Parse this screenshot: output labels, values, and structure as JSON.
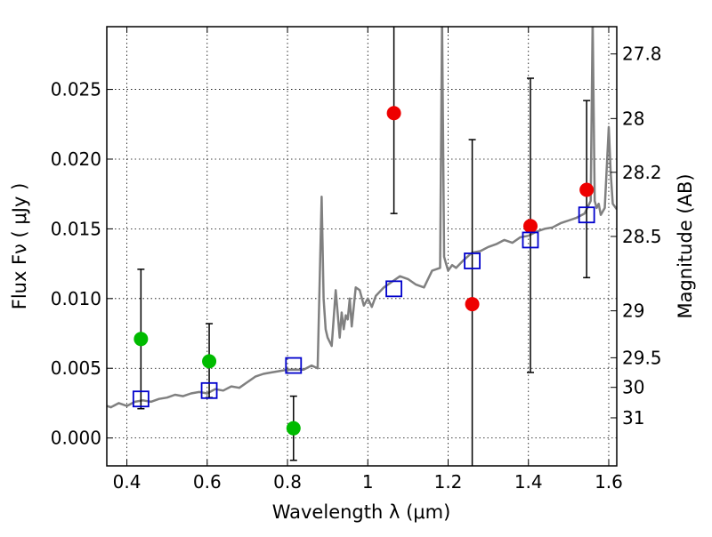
{
  "chart_data": {
    "type": "scatter",
    "title": "",
    "xlabel": "Wavelength  λ (μm)",
    "ylabel": "Flux  Fν  ( μJy )",
    "y2label": "Magnitude (AB)",
    "xlim": [
      0.35,
      1.62
    ],
    "ylim": [
      -0.002,
      0.0295
    ],
    "grid": true,
    "legend": "none",
    "x_ticks": [
      {
        "value": 0.4,
        "label": "0.4"
      },
      {
        "value": 0.6,
        "label": "0.6"
      },
      {
        "value": 0.8,
        "label": "0.8"
      },
      {
        "value": 1.0,
        "label": "1"
      },
      {
        "value": 1.2,
        "label": "1.2"
      },
      {
        "value": 1.4,
        "label": "1.4"
      },
      {
        "value": 1.6,
        "label": "1.6"
      }
    ],
    "y_ticks": [
      {
        "value": 0.0,
        "label": "0.000"
      },
      {
        "value": 0.005,
        "label": "0.005"
      },
      {
        "value": 0.01,
        "label": "0.010"
      },
      {
        "value": 0.015,
        "label": "0.015"
      },
      {
        "value": 0.02,
        "label": "0.020"
      },
      {
        "value": 0.025,
        "label": "0.025"
      }
    ],
    "y2_ticks": [
      {
        "mag": 27.8,
        "label": "27.8"
      },
      {
        "mag": 28.0,
        "label": "28"
      },
      {
        "mag": 28.2,
        "label": "28.2"
      },
      {
        "mag": 28.5,
        "label": "28.5"
      },
      {
        "mag": 29.0,
        "label": "29"
      },
      {
        "mag": 29.5,
        "label": "29.5"
      },
      {
        "mag": 30.0,
        "label": "30"
      },
      {
        "mag": 31.0,
        "label": "31"
      }
    ],
    "colors": {
      "spectrum": "#808080",
      "model_points": "#0000cc",
      "green_points": "#00bb00",
      "red_points": "#ee0000",
      "errorbar": "#000000",
      "grid": "#000000"
    },
    "series": [
      {
        "kind": "spectrum",
        "x": [
          0.35,
          0.36,
          0.38,
          0.4,
          0.42,
          0.44,
          0.46,
          0.48,
          0.5,
          0.52,
          0.54,
          0.56,
          0.58,
          0.6,
          0.62,
          0.64,
          0.66,
          0.68,
          0.7,
          0.72,
          0.74,
          0.76,
          0.78,
          0.8,
          0.82,
          0.84,
          0.86,
          0.875,
          0.88,
          0.885,
          0.89,
          0.895,
          0.9,
          0.91,
          0.92,
          0.93,
          0.935,
          0.94,
          0.945,
          0.95,
          0.955,
          0.96,
          0.97,
          0.98,
          0.99,
          1.0,
          1.01,
          1.02,
          1.04,
          1.06,
          1.08,
          1.1,
          1.12,
          1.14,
          1.16,
          1.18,
          1.185,
          1.19,
          1.195,
          1.2,
          1.21,
          1.22,
          1.24,
          1.26,
          1.28,
          1.3,
          1.32,
          1.34,
          1.36,
          1.38,
          1.4,
          1.42,
          1.44,
          1.46,
          1.48,
          1.5,
          1.52,
          1.54,
          1.555,
          1.56,
          1.565,
          1.57,
          1.575,
          1.58,
          1.59,
          1.6,
          1.605,
          1.61,
          1.62
        ],
        "y": [
          0.0023,
          0.0022,
          0.0025,
          0.0023,
          0.0026,
          0.0027,
          0.0026,
          0.0028,
          0.0029,
          0.0031,
          0.003,
          0.0032,
          0.0033,
          0.0032,
          0.0035,
          0.0034,
          0.0037,
          0.0036,
          0.004,
          0.0044,
          0.0046,
          0.0047,
          0.0048,
          0.0049,
          0.0049,
          0.0049,
          0.0052,
          0.005,
          0.011,
          0.0173,
          0.01,
          0.0078,
          0.0072,
          0.0066,
          0.0106,
          0.0072,
          0.009,
          0.0078,
          0.0088,
          0.0085,
          0.01,
          0.008,
          0.0108,
          0.0106,
          0.0095,
          0.01,
          0.0094,
          0.0102,
          0.0108,
          0.0112,
          0.0116,
          0.0114,
          0.011,
          0.0108,
          0.012,
          0.0122,
          0.03,
          0.013,
          0.0125,
          0.012,
          0.0124,
          0.0122,
          0.0128,
          0.0133,
          0.0134,
          0.0137,
          0.0139,
          0.0142,
          0.014,
          0.0144,
          0.0145,
          0.0148,
          0.015,
          0.0151,
          0.0154,
          0.0156,
          0.0158,
          0.0161,
          0.017,
          0.03,
          0.017,
          0.0165,
          0.0168,
          0.016,
          0.0165,
          0.0223,
          0.019,
          0.0168,
          0.0164
        ]
      },
      {
        "kind": "model",
        "x": [
          0.435,
          0.605,
          0.815,
          1.065,
          1.26,
          1.405,
          1.545
        ],
        "y": [
          0.0028,
          0.0034,
          0.0052,
          0.0107,
          0.0127,
          0.0142,
          0.016
        ]
      },
      {
        "kind": "detections_green",
        "x": [
          0.435,
          0.605,
          0.815
        ],
        "y": [
          0.0071,
          0.0055,
          0.0007
        ],
        "err_low": [
          0.0021,
          0.0029,
          -0.0016
        ],
        "err_high": [
          0.0121,
          0.0082,
          0.003
        ]
      },
      {
        "kind": "detections_red",
        "x": [
          1.065,
          1.26,
          1.405,
          1.545
        ],
        "y": [
          0.0233,
          0.0096,
          0.0152,
          0.0178
        ],
        "err_low": [
          0.0161,
          -0.0025,
          0.0047,
          0.0115
        ],
        "err_high": [
          0.0305,
          0.0214,
          0.0258,
          0.0242
        ]
      }
    ]
  }
}
